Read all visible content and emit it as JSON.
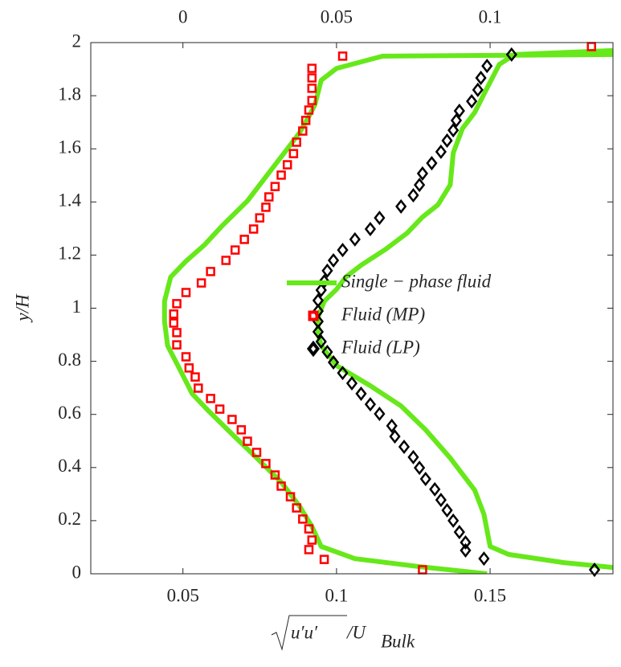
{
  "chart_data": {
    "type": "line",
    "ylabel": "y/H",
    "xlabel": [
      "u′u′",
      "/U",
      "Bulk"
    ],
    "xlim": [
      0.02,
      0.19
    ],
    "xticks": [
      0.05,
      0.1,
      0.15
    ],
    "x2lim": [
      -0.03,
      0.14
    ],
    "x2ticks": [
      0,
      0.05,
      0.1
    ],
    "ylim": [
      0,
      2
    ],
    "yticks": [
      0,
      0.2,
      0.4,
      0.6,
      0.8,
      1,
      1.2,
      1.4,
      1.6,
      1.8,
      2
    ],
    "grid": false,
    "legend": "center",
    "series": [
      {
        "name": "Single − phase fluid",
        "color": "#66e81a",
        "marker": "line",
        "x": [
          0.19,
          0.115,
          0.1,
          0.095,
          0.093,
          0.091,
          0.088,
          0.083,
          0.078,
          0.071,
          0.063,
          0.057,
          0.051,
          0.046,
          0.044,
          0.044,
          0.045,
          0.049,
          0.053,
          0.058,
          0.066,
          0.074,
          0.082,
          0.088,
          0.092,
          0.095,
          0.106,
          0.127,
          0.149,
          null,
          0.19,
          0.158,
          0.153,
          0.149,
          0.145,
          0.141,
          0.138,
          0.137,
          0.133,
          0.128,
          0.123,
          0.116,
          0.108,
          0.103,
          0.1,
          0.096,
          0.094,
          0.094,
          0.095,
          0.1,
          0.111,
          0.121,
          0.129,
          0.137,
          0.145,
          0.148,
          0.15,
          0.156,
          0.174,
          0.19
        ],
        "y": [
          1.955,
          1.949,
          1.903,
          1.858,
          1.767,
          1.722,
          1.661,
          1.585,
          1.51,
          1.404,
          1.313,
          1.238,
          1.177,
          1.117,
          1.026,
          0.95,
          0.859,
          0.769,
          0.678,
          0.617,
          0.526,
          0.436,
          0.345,
          0.254,
          0.178,
          0.103,
          0.057,
          0.027,
          0,
          null,
          1.97,
          1.955,
          1.918,
          1.828,
          1.737,
          1.676,
          1.585,
          1.464,
          1.389,
          1.343,
          1.283,
          1.222,
          1.162,
          1.117,
          1.071,
          1.026,
          0.965,
          0.905,
          0.859,
          0.784,
          0.708,
          0.632,
          0.542,
          0.436,
          0.315,
          0.224,
          0.103,
          0.073,
          0.042,
          0.024
        ]
      },
      {
        "name": "Fluid (MP)",
        "color": "#ff0000",
        "marker": "square",
        "x": [
          0.183,
          0.102,
          0.092,
          0.092,
          0.092,
          0.092,
          0.091,
          0.09,
          0.089,
          0.087,
          0.086,
          0.084,
          0.082,
          0.08,
          0.078,
          0.077,
          0.075,
          0.073,
          0.07,
          0.067,
          0.064,
          0.059,
          0.056,
          0.051,
          0.048,
          0.047,
          0.047,
          0.048,
          0.048,
          0.051,
          0.052,
          0.054,
          0.055,
          0.059,
          0.062,
          0.066,
          0.069,
          0.071,
          0.074,
          0.077,
          0.08,
          0.082,
          0.085,
          0.087,
          0.089,
          0.091,
          0.092,
          0.091,
          0.096,
          0.128
        ],
        "y": [
          1.985,
          1.949,
          1.903,
          1.867,
          1.828,
          1.782,
          1.746,
          1.707,
          1.667,
          1.625,
          1.582,
          1.54,
          1.501,
          1.458,
          1.419,
          1.38,
          1.34,
          1.298,
          1.259,
          1.219,
          1.18,
          1.138,
          1.095,
          1.059,
          1.017,
          0.978,
          0.944,
          0.908,
          0.862,
          0.817,
          0.775,
          0.741,
          0.699,
          0.66,
          0.62,
          0.581,
          0.542,
          0.499,
          0.457,
          0.415,
          0.372,
          0.33,
          0.29,
          0.248,
          0.206,
          0.169,
          0.127,
          0.091,
          0.054,
          0.015
        ]
      },
      {
        "name": "Fluid (LP)",
        "color": "#000000",
        "marker": "diamond",
        "x": [
          0.157,
          0.149,
          0.147,
          0.146,
          0.144,
          0.14,
          0.139,
          0.138,
          0.136,
          0.134,
          0.131,
          0.128,
          0.127,
          0.125,
          0.121,
          0.114,
          0.111,
          0.106,
          0.102,
          0.099,
          0.097,
          0.096,
          0.095,
          0.094,
          0.094,
          0.094,
          0.094,
          0.095,
          0.097,
          0.099,
          0.102,
          0.105,
          0.108,
          0.111,
          0.114,
          0.118,
          0.119,
          0.122,
          0.125,
          0.127,
          0.129,
          0.132,
          0.134,
          0.136,
          0.138,
          0.14,
          0.142,
          0.142,
          0.148,
          0.184
        ],
        "y": [
          1.955,
          1.912,
          1.867,
          1.822,
          1.779,
          1.743,
          1.707,
          1.67,
          1.631,
          1.589,
          1.546,
          1.507,
          1.464,
          1.425,
          1.383,
          1.34,
          1.298,
          1.259,
          1.219,
          1.18,
          1.141,
          1.101,
          1.068,
          1.029,
          0.989,
          0.95,
          0.911,
          0.874,
          0.835,
          0.796,
          0.756,
          0.717,
          0.678,
          0.638,
          0.602,
          0.557,
          0.517,
          0.478,
          0.439,
          0.399,
          0.357,
          0.318,
          0.278,
          0.239,
          0.2,
          0.157,
          0.118,
          0.088,
          0.057,
          0.015
        ]
      }
    ]
  }
}
